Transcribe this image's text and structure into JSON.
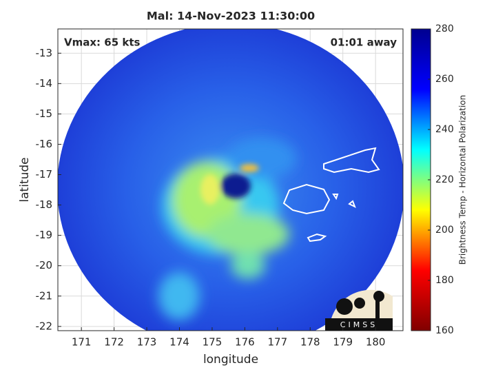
{
  "chart_data": {
    "type": "image",
    "title": "Mal: 14-Nov-2023 11:30:00",
    "annotations": [
      "Vmax: 65 kts",
      "01:01 away"
    ],
    "xlabel": "longitude",
    "ylabel": "latitude",
    "xlim": [
      170.28,
      180.84
    ],
    "ylim": [
      -22.14,
      -12.2
    ],
    "xticks": [
      171,
      172,
      173,
      174,
      175,
      176,
      177,
      178,
      179,
      180
    ],
    "yticks": [
      -13,
      -14,
      -15,
      -16,
      -17,
      -18,
      -19,
      -20,
      -21,
      -22
    ],
    "grid": true,
    "colorbar": {
      "label": "Brightness Temp - Horizontal Polarization",
      "clim": [
        160,
        280
      ],
      "ticks": [
        160,
        180,
        200,
        220,
        240,
        260,
        280
      ],
      "colormap": [
        "#800000",
        "#ff0000",
        "#ffff00",
        "#00ffff",
        "#0000ff",
        "#00008f"
      ]
    },
    "logo": "CIMSS"
  }
}
